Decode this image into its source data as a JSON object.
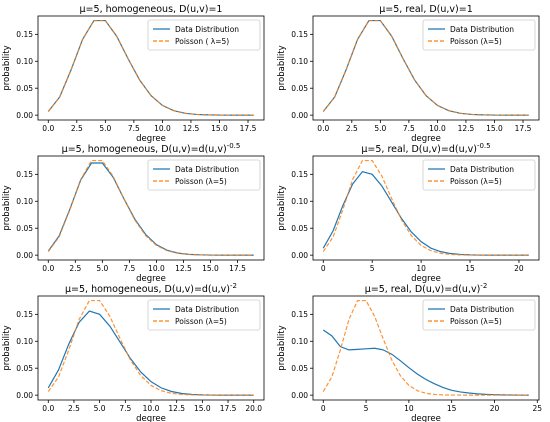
{
  "colors": {
    "data": "#1f77b4",
    "poisson": "#ff7f0e"
  },
  "chart_data": [
    {
      "type": "line",
      "title": "μ=5, homogeneous, D(u,v)=1",
      "xlabel": "degree",
      "ylabel": "probability",
      "xlim": [
        -0.9,
        18.9
      ],
      "ylim": [
        -0.009,
        0.184
      ],
      "xticks": [
        "0.0",
        "2.5",
        "5.0",
        "7.5",
        "10.0",
        "12.5",
        "15.0",
        "17.5"
      ],
      "xtick_values": [
        0,
        2.5,
        5,
        7.5,
        10,
        12.5,
        15,
        17.5
      ],
      "yticks": [
        "0.00",
        "0.05",
        "0.10",
        "0.15"
      ],
      "ytick_values": [
        0,
        0.05,
        0.1,
        0.15
      ],
      "legend": [
        "Data Distribution",
        "Poisson ( λ=5)"
      ],
      "legend_loc": "upper right",
      "series": [
        {
          "name": "Data Distribution",
          "x": [
            0,
            1,
            2,
            3,
            4,
            5,
            6,
            7,
            8,
            9,
            10,
            11,
            12,
            13,
            14,
            15,
            16,
            17,
            18
          ],
          "values": [
            0.0067,
            0.0337,
            0.0842,
            0.1404,
            0.1755,
            0.1755,
            0.1462,
            0.1044,
            0.0653,
            0.0363,
            0.0181,
            0.0082,
            0.0034,
            0.0013,
            0.0005,
            0.0002,
            0.0001,
            0.0,
            0.0
          ]
        },
        {
          "name": "Poisson ( λ=5)",
          "x": [
            0,
            1,
            2,
            3,
            4,
            5,
            6,
            7,
            8,
            9,
            10,
            11,
            12,
            13,
            14,
            15,
            16,
            17,
            18
          ],
          "values": [
            0.0067,
            0.0337,
            0.0842,
            0.1404,
            0.1755,
            0.1755,
            0.1462,
            0.1044,
            0.0653,
            0.0363,
            0.0181,
            0.0082,
            0.0034,
            0.0013,
            0.0005,
            0.0002,
            0.0001,
            0.0,
            0.0
          ]
        }
      ]
    },
    {
      "type": "line",
      "title": "μ=5, real, D(u,v)=1",
      "xlabel": "degree",
      "ylabel": "probability",
      "xlim": [
        -0.9,
        18.9
      ],
      "ylim": [
        -0.009,
        0.184
      ],
      "xticks": [
        "0.0",
        "2.5",
        "5.0",
        "7.5",
        "10.0",
        "12.5",
        "15.0",
        "17.5"
      ],
      "xtick_values": [
        0,
        2.5,
        5,
        7.5,
        10,
        12.5,
        15,
        17.5
      ],
      "yticks": [
        "0.00",
        "0.05",
        "0.10",
        "0.15"
      ],
      "ytick_values": [
        0,
        0.05,
        0.1,
        0.15
      ],
      "legend": [
        "Data Distribution",
        "Poisson (λ=5)"
      ],
      "legend_loc": "upper right",
      "series": [
        {
          "name": "Data Distribution",
          "x": [
            0,
            1,
            2,
            3,
            4,
            5,
            6,
            7,
            8,
            9,
            10,
            11,
            12,
            13,
            14,
            15,
            16,
            17,
            18
          ],
          "values": [
            0.0067,
            0.0337,
            0.0842,
            0.1404,
            0.1755,
            0.1755,
            0.1462,
            0.1044,
            0.0653,
            0.0363,
            0.0181,
            0.0082,
            0.0034,
            0.0013,
            0.0005,
            0.0002,
            0.0001,
            0.0,
            0.0
          ]
        },
        {
          "name": "Poisson (λ=5)",
          "x": [
            0,
            1,
            2,
            3,
            4,
            5,
            6,
            7,
            8,
            9,
            10,
            11,
            12,
            13,
            14,
            15,
            16,
            17,
            18
          ],
          "values": [
            0.0067,
            0.0337,
            0.0842,
            0.1404,
            0.1755,
            0.1755,
            0.1462,
            0.1044,
            0.0653,
            0.0363,
            0.0181,
            0.0082,
            0.0034,
            0.0013,
            0.0005,
            0.0002,
            0.0001,
            0.0,
            0.0
          ]
        }
      ]
    },
    {
      "type": "line",
      "title": "μ=5, homogeneous, D(u,v)=d(u,v)^-0.5",
      "xlabel": "degree",
      "ylabel": "probability",
      "xlim": [
        -0.95,
        19.95
      ],
      "ylim": [
        -0.009,
        0.184
      ],
      "xticks": [
        "0.0",
        "2.5",
        "5.0",
        "7.5",
        "10.0",
        "12.5",
        "15.0",
        "17.5"
      ],
      "xtick_values": [
        0,
        2.5,
        5,
        7.5,
        10,
        12.5,
        15,
        17.5
      ],
      "yticks": [
        "0.00",
        "0.05",
        "0.10",
        "0.15"
      ],
      "ytick_values": [
        0,
        0.05,
        0.1,
        0.15
      ],
      "legend": [
        "Data Distribution",
        "Poisson (λ=5)"
      ],
      "legend_loc": "upper right",
      "series": [
        {
          "name": "Data Distribution",
          "x": [
            0,
            1,
            2,
            3,
            4,
            5,
            6,
            7,
            8,
            9,
            10,
            11,
            12,
            13,
            14,
            15,
            16,
            17,
            18,
            19
          ],
          "values": [
            0.0075,
            0.0355,
            0.0855,
            0.1395,
            0.171,
            0.171,
            0.1445,
            0.1045,
            0.067,
            0.0385,
            0.0195,
            0.009,
            0.0038,
            0.0015,
            0.0006,
            0.0002,
            0.0001,
            0.0,
            0.0,
            0.0
          ]
        },
        {
          "name": "Poisson (λ=5)",
          "x": [
            0,
            1,
            2,
            3,
            4,
            5,
            6,
            7,
            8,
            9,
            10,
            11,
            12,
            13,
            14,
            15,
            16,
            17,
            18,
            19
          ],
          "values": [
            0.0067,
            0.0337,
            0.0842,
            0.1404,
            0.1755,
            0.1755,
            0.1462,
            0.1044,
            0.0653,
            0.0363,
            0.0181,
            0.0082,
            0.0034,
            0.0013,
            0.0005,
            0.0002,
            0.0001,
            0.0,
            0.0,
            0.0
          ]
        }
      ]
    },
    {
      "type": "line",
      "title": "μ=5, real, D(u,v)=d(u,v)^-0.5",
      "xlabel": "degree",
      "ylabel": "probability",
      "xlim": [
        -1.05,
        22.05
      ],
      "ylim": [
        -0.009,
        0.184
      ],
      "xticks": [
        "0",
        "5",
        "10",
        "15",
        "20"
      ],
      "xtick_values": [
        0,
        5,
        10,
        15,
        20
      ],
      "yticks": [
        "0.00",
        "0.05",
        "0.10",
        "0.15"
      ],
      "ytick_values": [
        0,
        0.05,
        0.1,
        0.15
      ],
      "legend": [
        "Data Distribution",
        "Poisson (λ=5)"
      ],
      "legend_loc": "upper right",
      "series": [
        {
          "name": "Data Distribution",
          "x": [
            0,
            1,
            2,
            3,
            4,
            5,
            6,
            7,
            8,
            9,
            10,
            11,
            12,
            13,
            14,
            15,
            16,
            17,
            18,
            19,
            20,
            21
          ],
          "values": [
            0.013,
            0.045,
            0.092,
            0.132,
            0.155,
            0.15,
            0.128,
            0.098,
            0.068,
            0.043,
            0.025,
            0.013,
            0.0065,
            0.003,
            0.0013,
            0.0005,
            0.0002,
            0.0001,
            0.0,
            0.0,
            0.0,
            0.0
          ]
        },
        {
          "name": "Poisson (λ=5)",
          "x": [
            0,
            1,
            2,
            3,
            4,
            5,
            6,
            7,
            8,
            9,
            10,
            11,
            12,
            13,
            14,
            15,
            16,
            17,
            18,
            19,
            20,
            21
          ],
          "values": [
            0.0067,
            0.0337,
            0.0842,
            0.1404,
            0.1755,
            0.1755,
            0.1462,
            0.1044,
            0.0653,
            0.0363,
            0.0181,
            0.0082,
            0.0034,
            0.0013,
            0.0005,
            0.0002,
            0.0001,
            0.0,
            0.0,
            0.0,
            0.0,
            0.0
          ]
        }
      ]
    },
    {
      "type": "line",
      "title": "μ=5, homogeneous, D(u,v)=d(u,v)^-2",
      "xlabel": "degree",
      "ylabel": "probability",
      "xlim": [
        -1.0,
        21.0
      ],
      "ylim": [
        -0.009,
        0.184
      ],
      "xticks": [
        "0.0",
        "2.5",
        "5.0",
        "7.5",
        "10.0",
        "12.5",
        "15.0",
        "17.5",
        "20.0"
      ],
      "xtick_values": [
        0,
        2.5,
        5,
        7.5,
        10,
        12.5,
        15,
        17.5,
        20
      ],
      "yticks": [
        "0.00",
        "0.05",
        "0.10",
        "0.15"
      ],
      "ytick_values": [
        0,
        0.05,
        0.1,
        0.15
      ],
      "legend": [
        "Data Distribution",
        "Poisson (λ=5)"
      ],
      "legend_loc": "upper right",
      "series": [
        {
          "name": "Data Distribution",
          "x": [
            0,
            1,
            2,
            3,
            4,
            5,
            6,
            7,
            8,
            9,
            10,
            11,
            12,
            13,
            14,
            15,
            16,
            17,
            18,
            19,
            20
          ],
          "values": [
            0.0135,
            0.047,
            0.095,
            0.135,
            0.156,
            0.15,
            0.128,
            0.098,
            0.068,
            0.043,
            0.025,
            0.0135,
            0.0068,
            0.0031,
            0.0013,
            0.0005,
            0.0002,
            0.0001,
            0.0,
            0.0,
            0.0
          ]
        },
        {
          "name": "Poisson (λ=5)",
          "x": [
            0,
            1,
            2,
            3,
            4,
            5,
            6,
            7,
            8,
            9,
            10,
            11,
            12,
            13,
            14,
            15,
            16,
            17,
            18,
            19,
            20
          ],
          "values": [
            0.0067,
            0.0337,
            0.0842,
            0.1404,
            0.1755,
            0.1755,
            0.1462,
            0.1044,
            0.0653,
            0.0363,
            0.0181,
            0.0082,
            0.0034,
            0.0013,
            0.0005,
            0.0002,
            0.0001,
            0.0,
            0.0,
            0.0,
            0.0
          ]
        }
      ]
    },
    {
      "type": "line",
      "title": "μ=5, real, D(u,v)=d(u,v)^-2",
      "xlabel": "degree",
      "ylabel": "probability",
      "xlim": [
        -1.2,
        25.2
      ],
      "ylim": [
        -0.009,
        0.184
      ],
      "xticks": [
        "0",
        "5",
        "10",
        "15",
        "20",
        "25"
      ],
      "xtick_values": [
        0,
        5,
        10,
        15,
        20,
        25
      ],
      "yticks": [
        "0.00",
        "0.05",
        "0.10",
        "0.15"
      ],
      "ytick_values": [
        0,
        0.05,
        0.1,
        0.15
      ],
      "legend": [
        "Data Distribution",
        "Poisson (λ=5)"
      ],
      "legend_loc": "upper right",
      "series": [
        {
          "name": "Data Distribution",
          "x": [
            0,
            1,
            2,
            3,
            4,
            5,
            6,
            7,
            8,
            9,
            10,
            11,
            12,
            13,
            14,
            15,
            16,
            17,
            18,
            19,
            20,
            21,
            22,
            23,
            24
          ],
          "values": [
            0.121,
            0.11,
            0.09,
            0.084,
            0.085,
            0.086,
            0.087,
            0.084,
            0.076,
            0.064,
            0.051,
            0.039,
            0.029,
            0.021,
            0.014,
            0.009,
            0.006,
            0.004,
            0.0025,
            0.0015,
            0.0009,
            0.0005,
            0.0003,
            0.0002,
            0.0001
          ]
        },
        {
          "name": "Poisson (λ=5)",
          "x": [
            0,
            1,
            2,
            3,
            4,
            5,
            6,
            7,
            8,
            9,
            10,
            11,
            12,
            13,
            14,
            15,
            16,
            17,
            18,
            19,
            20,
            21,
            22,
            23,
            24
          ],
          "values": [
            0.0067,
            0.0337,
            0.0842,
            0.1404,
            0.1755,
            0.1755,
            0.1462,
            0.1044,
            0.0653,
            0.0363,
            0.0181,
            0.0082,
            0.0034,
            0.0013,
            0.0005,
            0.0002,
            0.0001,
            0.0,
            0.0,
            0.0,
            0.0,
            0.0,
            0.0,
            0.0,
            0.0
          ]
        }
      ]
    }
  ]
}
